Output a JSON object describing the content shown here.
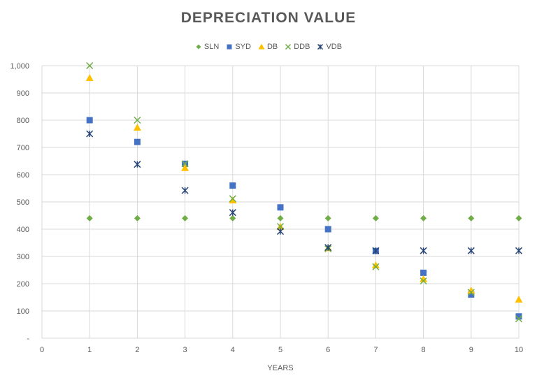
{
  "chart_data": {
    "type": "scatter",
    "title": "DEPRECIATION VALUE",
    "xlabel": "YEARS",
    "ylabel": "",
    "xlim": [
      0,
      10
    ],
    "ylim": [
      0,
      1000
    ],
    "x_ticks": [
      "0",
      "1",
      "2",
      "3",
      "4",
      "5",
      "6",
      "7",
      "8",
      "9",
      "10"
    ],
    "y_ticks": [
      "-",
      "100",
      "200",
      "300",
      "400",
      "500",
      "600",
      "700",
      "800",
      "900",
      "1,000"
    ],
    "grid": true,
    "legend_position": "top",
    "x": [
      1,
      2,
      3,
      4,
      5,
      6,
      7,
      8,
      9,
      10
    ],
    "series": [
      {
        "name": "SLN",
        "marker": "diamond",
        "color": "#70AD47",
        "values": [
          440,
          440,
          440,
          440,
          440,
          440,
          440,
          440,
          440,
          440
        ]
      },
      {
        "name": "SYD",
        "marker": "square",
        "color": "#4472C4",
        "values": [
          800,
          720,
          640,
          560,
          480,
          400,
          320,
          240,
          160,
          80
        ]
      },
      {
        "name": "DB",
        "marker": "triangle",
        "color": "#FFC000",
        "values": [
          955,
          773,
          625,
          506,
          409,
          331,
          268,
          217,
          175,
          142
        ]
      },
      {
        "name": "DDB",
        "marker": "x",
        "color": "#70AD47",
        "values": [
          1000,
          800,
          640,
          512,
          410,
          328,
          262,
          210,
          168,
          71
        ]
      },
      {
        "name": "VDB",
        "marker": "star",
        "color": "#264478",
        "values": [
          750,
          638,
          542,
          461,
          392,
          333,
          321,
          321,
          321,
          321
        ]
      }
    ]
  }
}
